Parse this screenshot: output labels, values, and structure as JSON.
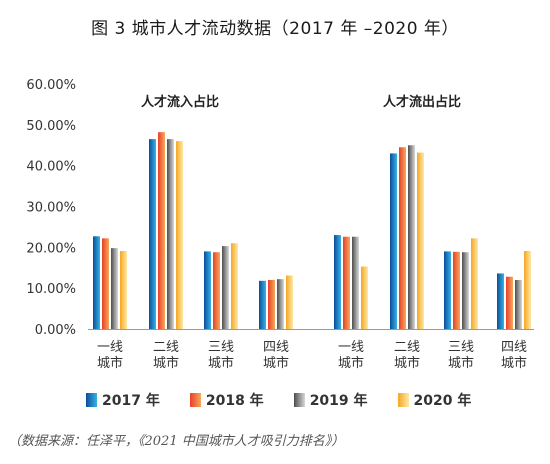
{
  "title": "图 3  城市人才流动数据（2017 年 –2020 年）",
  "source": "（数据来源：任泽平，《2021 中国城市人才吸引力排名》）",
  "colors": {
    "2017": [
      "#0a4e9a",
      "#38b2e6"
    ],
    "2018": [
      "#e8402a",
      "#f7a85a"
    ],
    "2019": [
      "#4d4d4d",
      "#d9d9d9"
    ],
    "2020": [
      "#f5a623",
      "#fde9a6"
    ]
  },
  "chart_data": {
    "type": "bar",
    "ylim": [
      0,
      60
    ],
    "yticks": [
      "0.00%",
      "10.00%",
      "20.00%",
      "30.00%",
      "40.00%",
      "50.00%",
      "60.00%"
    ],
    "categories": [
      "一线城市",
      "二线城市",
      "三线城市",
      "四线城市"
    ],
    "category_lines": [
      [
        "一线",
        "城市"
      ],
      [
        "二线",
        "城市"
      ],
      [
        "三线",
        "城市"
      ],
      [
        "四线",
        "城市"
      ]
    ],
    "legend": [
      "2017 年",
      "2018 年",
      "2019 年",
      "2020 年"
    ],
    "groups": [
      {
        "title": "人才流入占比",
        "series": [
          {
            "name": "2017 年",
            "values": [
              22.7,
              46.5,
              19.0,
              11.8
            ]
          },
          {
            "name": "2018 年",
            "values": [
              22.2,
              48.2,
              18.8,
              12.0
            ]
          },
          {
            "name": "2019 年",
            "values": [
              19.8,
              46.5,
              20.3,
              12.2
            ]
          },
          {
            "name": "2020 年",
            "values": [
              19.1,
              46.0,
              21.0,
              13.1
            ]
          }
        ]
      },
      {
        "title": "人才流出占比",
        "series": [
          {
            "name": "2017 年",
            "values": [
              23.0,
              43.0,
              19.0,
              13.6
            ]
          },
          {
            "name": "2018 年",
            "values": [
              22.6,
              44.5,
              18.9,
              12.8
            ]
          },
          {
            "name": "2019 年",
            "values": [
              22.6,
              45.0,
              18.8,
              12.0
            ]
          },
          {
            "name": "2020 年",
            "values": [
              15.3,
              43.2,
              22.2,
              19.1
            ]
          }
        ]
      }
    ]
  }
}
